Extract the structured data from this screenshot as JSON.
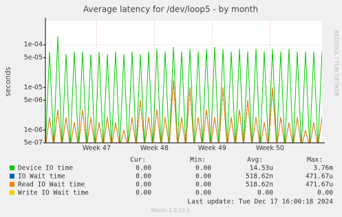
{
  "chart_data": {
    "type": "line",
    "title": "Average latency for /dev/loop5 - by month",
    "y_label": "seconds",
    "side_text": "RRDTOOL / TOBI OETIKER",
    "log_y": true,
    "grid": true,
    "xlim": [
      0,
      33.5
    ],
    "xticks": [
      {
        "value": 6.2,
        "label": "Week 47"
      },
      {
        "value": 13.2,
        "label": "Week 48"
      },
      {
        "value": 20.2,
        "label": "Week 49"
      },
      {
        "value": 27.2,
        "label": "Week 50"
      }
    ],
    "ylim": [
      5e-07,
      0.00037
    ],
    "yticks": [
      {
        "value": 5e-07,
        "label": "5e-07"
      },
      {
        "value": 1e-06,
        "label": "1e-06"
      },
      {
        "value": 5e-06,
        "label": "5e-06"
      },
      {
        "value": 1e-05,
        "label": "1e-05"
      },
      {
        "value": 5e-05,
        "label": "5e-05"
      },
      {
        "value": 0.0001,
        "label": "1e-04"
      }
    ],
    "x": [
      0,
      0.5,
      1,
      1.5,
      2,
      2.5,
      3,
      3.5,
      4,
      4.5,
      5,
      5.5,
      6,
      6.5,
      7,
      7.5,
      8,
      8.5,
      9,
      9.5,
      10,
      10.5,
      11,
      11.5,
      12,
      12.5,
      13,
      13.5,
      14,
      14.5,
      15,
      15.5,
      16,
      16.5,
      17,
      17.5,
      18,
      18.5,
      19,
      19.5,
      20,
      20.5,
      21,
      21.5,
      22,
      22.5,
      23,
      23.5,
      24,
      24.5,
      25,
      25.5,
      26,
      26.5,
      27,
      27.5,
      28,
      28.5,
      29,
      29.5,
      30,
      30.5,
      31,
      31.5,
      32,
      32.5,
      33,
      33.5
    ],
    "stats_header": [
      "Cur:",
      "Min:",
      "Avg:",
      "Max:"
    ],
    "series": [
      {
        "name": "Device IO time",
        "color": "#00cc00",
        "stats": [
          "0.00",
          "0.00",
          "14.53u",
          "3.76m"
        ],
        "values": [
          4e-07,
          7e-05,
          4e-07,
          0.00016,
          4e-07,
          6e-05,
          4e-07,
          7e-05,
          4e-07,
          7e-05,
          4e-07,
          6e-05,
          4e-07,
          7e-05,
          4e-07,
          6e-05,
          4e-07,
          7e-05,
          4e-07,
          6e-05,
          4e-07,
          7e-05,
          4e-07,
          6e-05,
          4e-07,
          7e-05,
          4e-07,
          8e-05,
          4e-07,
          7e-05,
          4e-07,
          9e-05,
          4e-07,
          7e-05,
          4e-07,
          8e-05,
          4e-07,
          7e-05,
          4e-07,
          8e-05,
          4e-07,
          9e-05,
          4e-07,
          8e-05,
          4e-07,
          7e-05,
          4e-07,
          8e-05,
          4e-07,
          7e-05,
          4e-07,
          8e-05,
          4e-07,
          7e-05,
          4e-07,
          8e-05,
          4e-07,
          7e-05,
          4e-07,
          8e-05,
          4e-07,
          7e-05,
          4e-07,
          7e-05,
          4e-07,
          7e-05,
          4e-07,
          7e-05
        ]
      },
      {
        "name": "IO Wait time",
        "color": "#0066b3",
        "stats": [
          "0.00",
          "0.00",
          "518.62n",
          "471.67u"
        ],
        "values": [
          4e-07,
          2e-06,
          4e-07,
          3e-06,
          4e-07,
          2e-06,
          4e-07,
          1.5e-06,
          4e-07,
          3e-06,
          4e-07,
          2e-06,
          4e-07,
          1.5e-06,
          4e-07,
          2e-06,
          4e-07,
          1.5e-06,
          4e-07,
          1e-06,
          4e-07,
          2e-06,
          4e-07,
          5e-06,
          4e-07,
          2e-06,
          4e-07,
          3e-06,
          4e-07,
          2e-06,
          4e-07,
          1.5e-05,
          4e-07,
          2e-06,
          4e-07,
          1e-05,
          4e-07,
          2e-06,
          4e-07,
          3e-06,
          4e-07,
          2e-06,
          4e-07,
          1e-05,
          4e-07,
          2e-06,
          4e-07,
          3e-06,
          4e-07,
          5e-06,
          4e-07,
          2e-06,
          4e-07,
          1.5e-06,
          4e-07,
          1e-05,
          4e-07,
          2e-06,
          4e-07,
          1.5e-06,
          4e-07,
          2e-06,
          4e-07,
          1e-06,
          4e-07,
          1.5e-06,
          4e-07,
          2e-06
        ]
      },
      {
        "name": "Read IO Wait time",
        "color": "#ff8000",
        "stats": [
          "0.00",
          "0.00",
          "518.62n",
          "471.67u"
        ],
        "values": [
          4e-07,
          2e-06,
          4e-07,
          3e-06,
          4e-07,
          2e-06,
          4e-07,
          1.5e-06,
          4e-07,
          3e-06,
          4e-07,
          2e-06,
          4e-07,
          1.5e-06,
          4e-07,
          2e-06,
          4e-07,
          1.5e-06,
          4e-07,
          1e-06,
          4e-07,
          2e-06,
          4e-07,
          5e-06,
          4e-07,
          2e-06,
          4e-07,
          3e-06,
          4e-07,
          2e-06,
          4e-07,
          1.5e-05,
          4e-07,
          2e-06,
          4e-07,
          1e-05,
          4e-07,
          2e-06,
          4e-07,
          3e-06,
          4e-07,
          2e-06,
          4e-07,
          1e-05,
          4e-07,
          2e-06,
          4e-07,
          3e-06,
          4e-07,
          5e-06,
          4e-07,
          2e-06,
          4e-07,
          1.5e-06,
          4e-07,
          1e-05,
          4e-07,
          2e-06,
          4e-07,
          1.5e-06,
          4e-07,
          2e-06,
          4e-07,
          1e-06,
          4e-07,
          1.5e-06,
          4e-07,
          2e-06
        ]
      },
      {
        "name": "Write IO Wait time",
        "color": "#ffcc00",
        "stats": [
          "0.00",
          "0.00",
          "0.00",
          "0.00"
        ],
        "values": [
          null,
          null,
          null,
          null,
          null,
          null,
          null,
          null,
          null,
          null,
          null,
          null,
          null,
          null,
          null,
          null,
          null,
          null,
          null,
          null,
          null,
          null,
          null,
          null,
          null,
          null,
          null,
          null,
          null,
          null,
          null,
          null,
          null,
          null,
          null,
          null,
          null,
          null,
          null,
          null,
          null,
          null,
          null,
          null,
          null,
          null,
          null,
          null,
          null,
          null,
          null,
          null,
          null,
          null,
          null,
          null,
          null,
          null,
          null,
          null,
          null,
          null,
          null,
          null,
          null,
          null,
          null,
          null
        ]
      }
    ],
    "last_update": "Last update:  Tue Dec 17 16:00:18 2024",
    "footer": "Munin 2.0.33-1"
  }
}
